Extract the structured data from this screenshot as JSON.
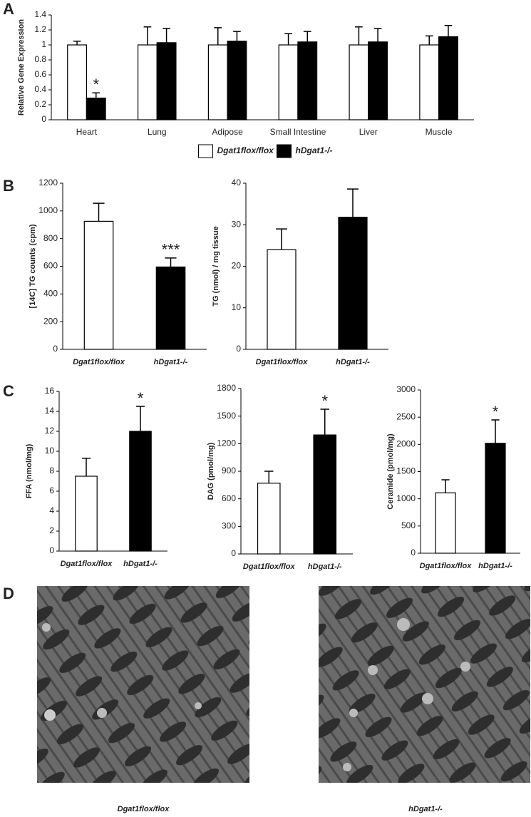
{
  "panel_labels": [
    "A",
    "B",
    "C",
    "D"
  ],
  "chart_data": [
    {
      "type": "bar",
      "y_label": "Relative Gene Expression",
      "categories": [
        "Heart",
        "Lung",
        "Adipose",
        "Small Intestine",
        "Liver",
        "Muscle"
      ],
      "series": [
        {
          "name": "Dgat1flox/flox",
          "color": "#ffffff",
          "values": [
            1,
            1,
            1,
            1,
            1,
            1
          ],
          "errors": [
            0.05,
            0.24,
            0.23,
            0.15,
            0.24,
            0.12
          ],
          "significance": [
            null,
            null,
            null,
            null,
            null,
            null
          ]
        },
        {
          "name": "hDgat1-/-",
          "color": "#000000",
          "values": [
            0.29,
            1.03,
            1.05,
            1.04,
            1.04,
            1.11
          ],
          "errors": [
            0.07,
            0.19,
            0.13,
            0.14,
            0.18,
            0.15
          ],
          "significance": [
            "*",
            null,
            null,
            null,
            null,
            null
          ]
        }
      ],
      "ylim": [
        0,
        1.4
      ],
      "yticks": [
        0,
        0.2,
        0.4,
        0.6,
        0.8,
        1,
        1.2,
        1.4
      ],
      "legend": "bottom"
    },
    {
      "type": "bar",
      "y_label": "[14C] TG counts (cpm)",
      "categories": [
        "Dgat1flox/flox",
        "hDgat1-/-"
      ],
      "values": [
        925,
        595
      ],
      "errors": [
        130,
        65
      ],
      "colors": [
        "#ffffff",
        "#000000"
      ],
      "significance": [
        null,
        "***"
      ],
      "ylim": [
        0,
        1200
      ],
      "yticks": [
        0,
        200,
        400,
        600,
        800,
        1000,
        1200
      ]
    },
    {
      "type": "bar",
      "y_label": "TG (nmol) / mg tissue",
      "categories": [
        "Dgat1flox/flox",
        "hDgat1-/-"
      ],
      "values": [
        24,
        31.8
      ],
      "errors": [
        5,
        6.8
      ],
      "colors": [
        "#ffffff",
        "#000000"
      ],
      "significance": [
        null,
        null
      ],
      "ylim": [
        0,
        40
      ],
      "yticks": [
        0,
        10,
        20,
        30,
        40
      ]
    },
    {
      "type": "bar",
      "y_label": "FFA (nmol/mg)",
      "categories": [
        "Dgat1flox/flox",
        "hDgat1-/-"
      ],
      "values": [
        7.5,
        12
      ],
      "errors": [
        1.8,
        2.5
      ],
      "colors": [
        "#ffffff",
        "#000000"
      ],
      "significance": [
        null,
        "*"
      ],
      "ylim": [
        0,
        16
      ],
      "yticks": [
        0,
        2,
        4,
        6,
        8,
        10,
        12,
        14,
        16
      ]
    },
    {
      "type": "bar",
      "y_label": "DAG (pmol/mg)",
      "categories": [
        "Dgat1flox/flox",
        "hDgat1-/-"
      ],
      "values": [
        770,
        1295
      ],
      "errors": [
        130,
        280
      ],
      "colors": [
        "#ffffff",
        "#000000"
      ],
      "significance": [
        null,
        "*"
      ],
      "ylim": [
        0,
        1800
      ],
      "yticks": [
        0,
        300,
        600,
        900,
        1200,
        1500,
        1800
      ]
    },
    {
      "type": "bar",
      "y_label": "Ceramide (pmol/mg)",
      "categories": [
        "Dgat1flox/flox",
        "hDgat1-/-"
      ],
      "values": [
        1110,
        2020
      ],
      "errors": [
        240,
        430
      ],
      "colors": [
        "#ffffff",
        "#000000"
      ],
      "significance": [
        null,
        "*"
      ],
      "ylim": [
        0,
        3000
      ],
      "yticks": [
        0,
        500,
        1000,
        1500,
        2000,
        2500,
        3000
      ]
    }
  ],
  "images": {
    "captions": [
      "Dgat1flox/flox",
      "hDgat1-/-"
    ]
  }
}
